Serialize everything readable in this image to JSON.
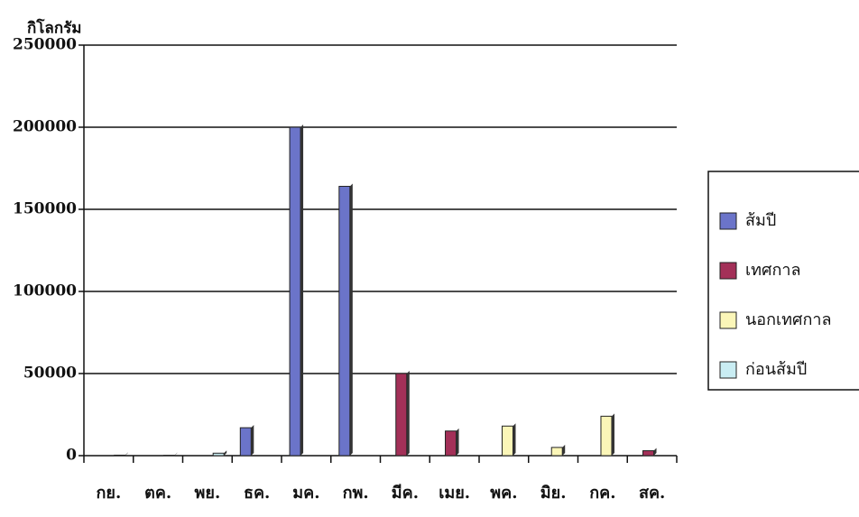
{
  "chart_data": {
    "type": "bar",
    "y_axis_label": "กิโลกรัม",
    "categories": [
      "กย.",
      "ตค.",
      "พย.",
      "ธค.",
      "มค.",
      "กพ.",
      "มีค.",
      "เมย.",
      "พค.",
      "มิย.",
      "กค.",
      "สค."
    ],
    "series": [
      {
        "name": "ส้มปี",
        "color": "#6b74c9",
        "values": [
          null,
          null,
          null,
          17000,
          200000,
          164000,
          null,
          null,
          null,
          null,
          null,
          null
        ]
      },
      {
        "name": "เทศกาล",
        "color": "#a33058",
        "values": [
          null,
          null,
          null,
          null,
          null,
          null,
          50000,
          15000,
          null,
          null,
          null,
          3000
        ]
      },
      {
        "name": "นอกเทศกาล",
        "color": "#fbf6b8",
        "values": [
          null,
          null,
          null,
          null,
          null,
          null,
          null,
          null,
          18000,
          5000,
          24000,
          null
        ]
      },
      {
        "name": "ก่อนส้มปี",
        "color": "#c9edf3",
        "values": [
          300,
          200,
          1500,
          null,
          null,
          null,
          null,
          null,
          null,
          null,
          null,
          null
        ]
      }
    ],
    "ylim": [
      0,
      250000
    ],
    "yticks": [
      0,
      50000,
      100000,
      150000,
      200000,
      250000
    ],
    "grid": true,
    "legend": "right"
  }
}
